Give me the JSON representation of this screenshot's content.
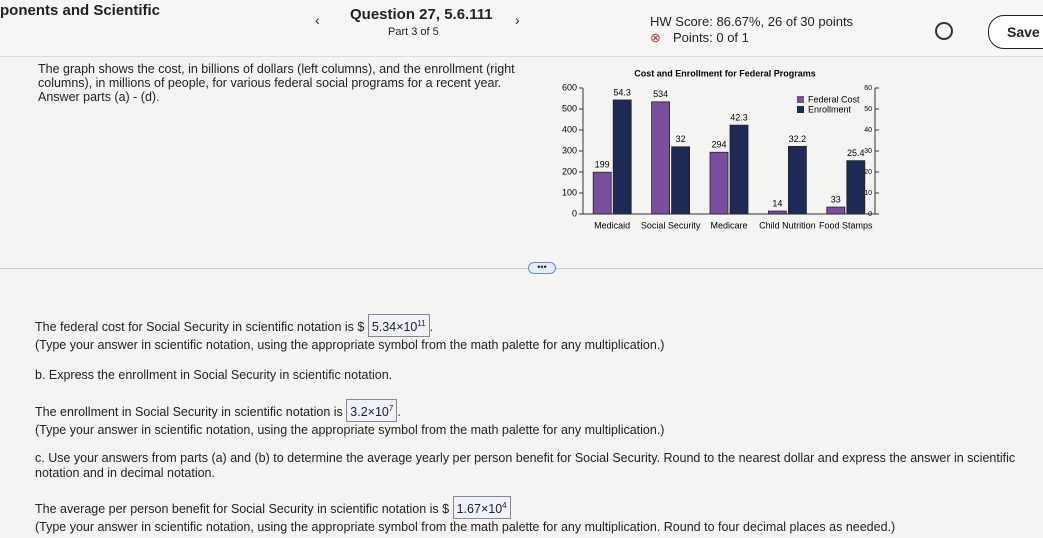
{
  "header": {
    "course": "ponents and Scientific",
    "question": "Question 27, 5.6.111",
    "part": "Part 3 of 5",
    "hw_score": "HW Score: 86.67%, 26 of 30 points",
    "points": "Points: 0 of 1",
    "save": "Save"
  },
  "problem": "The graph shows the cost, in billions of dollars (left columns), and the enrollment (right columns), in millions of people, for various federal social programs for a recent year. Answer parts (a) - (d).",
  "chart_data": {
    "type": "bar",
    "title": "Cost and Enrollment for Federal Programs",
    "categories": [
      "Medicaid",
      "Social Security",
      "Medicare",
      "Child Nutrition",
      "Food Stamps"
    ],
    "series": [
      {
        "name": "Federal Cost",
        "color": "#7a4e9e",
        "values": [
          199,
          534,
          294,
          14,
          33
        ]
      },
      {
        "name": "Enrollment",
        "color": "#1e2a55",
        "values": [
          54.3,
          32,
          42.3,
          32.2,
          25.4
        ],
        "axis": "y2"
      }
    ],
    "ylim": [
      0,
      600
    ],
    "yticks": [
      0,
      100,
      200,
      300,
      400,
      500,
      600
    ],
    "y2lim": [
      0,
      60
    ],
    "y2ticks": [
      0,
      10,
      20,
      30,
      40,
      50,
      60
    ],
    "legend": "upper right"
  },
  "answers": [
    {
      "lead": "The federal cost for Social Security in scientific notation is $",
      "mantissa": "5.34×10",
      "exponent": "11",
      "suffix": ".",
      "hint": "(Type your answer in scientific notation, using the appropriate symbol from the math palette for any multiplication.)"
    },
    {
      "question": "b. Express the enrollment in Social Security in scientific notation.",
      "lead": "The enrollment in Social Security in scientific notation is",
      "mantissa": "3.2×10",
      "exponent": "7",
      "suffix": ".",
      "hint": "(Type your answer in scientific notation, using the appropriate symbol from the math palette for any multiplication.)"
    },
    {
      "question": "c. Use your answers from parts (a) and (b) to determine the average yearly per person benefit for Social Security. Round to the nearest dollar and express the answer in scientific notation and in decimal notation.",
      "lead": "The average per person benefit for Social Security in scientific notation is $",
      "mantissa": "1.67×10",
      "exponent": "4",
      "suffix": "",
      "hint": "(Type your answer in scientific notation, using the appropriate symbol from the math palette for any multiplication. Round to four decimal places as needed.)"
    }
  ]
}
